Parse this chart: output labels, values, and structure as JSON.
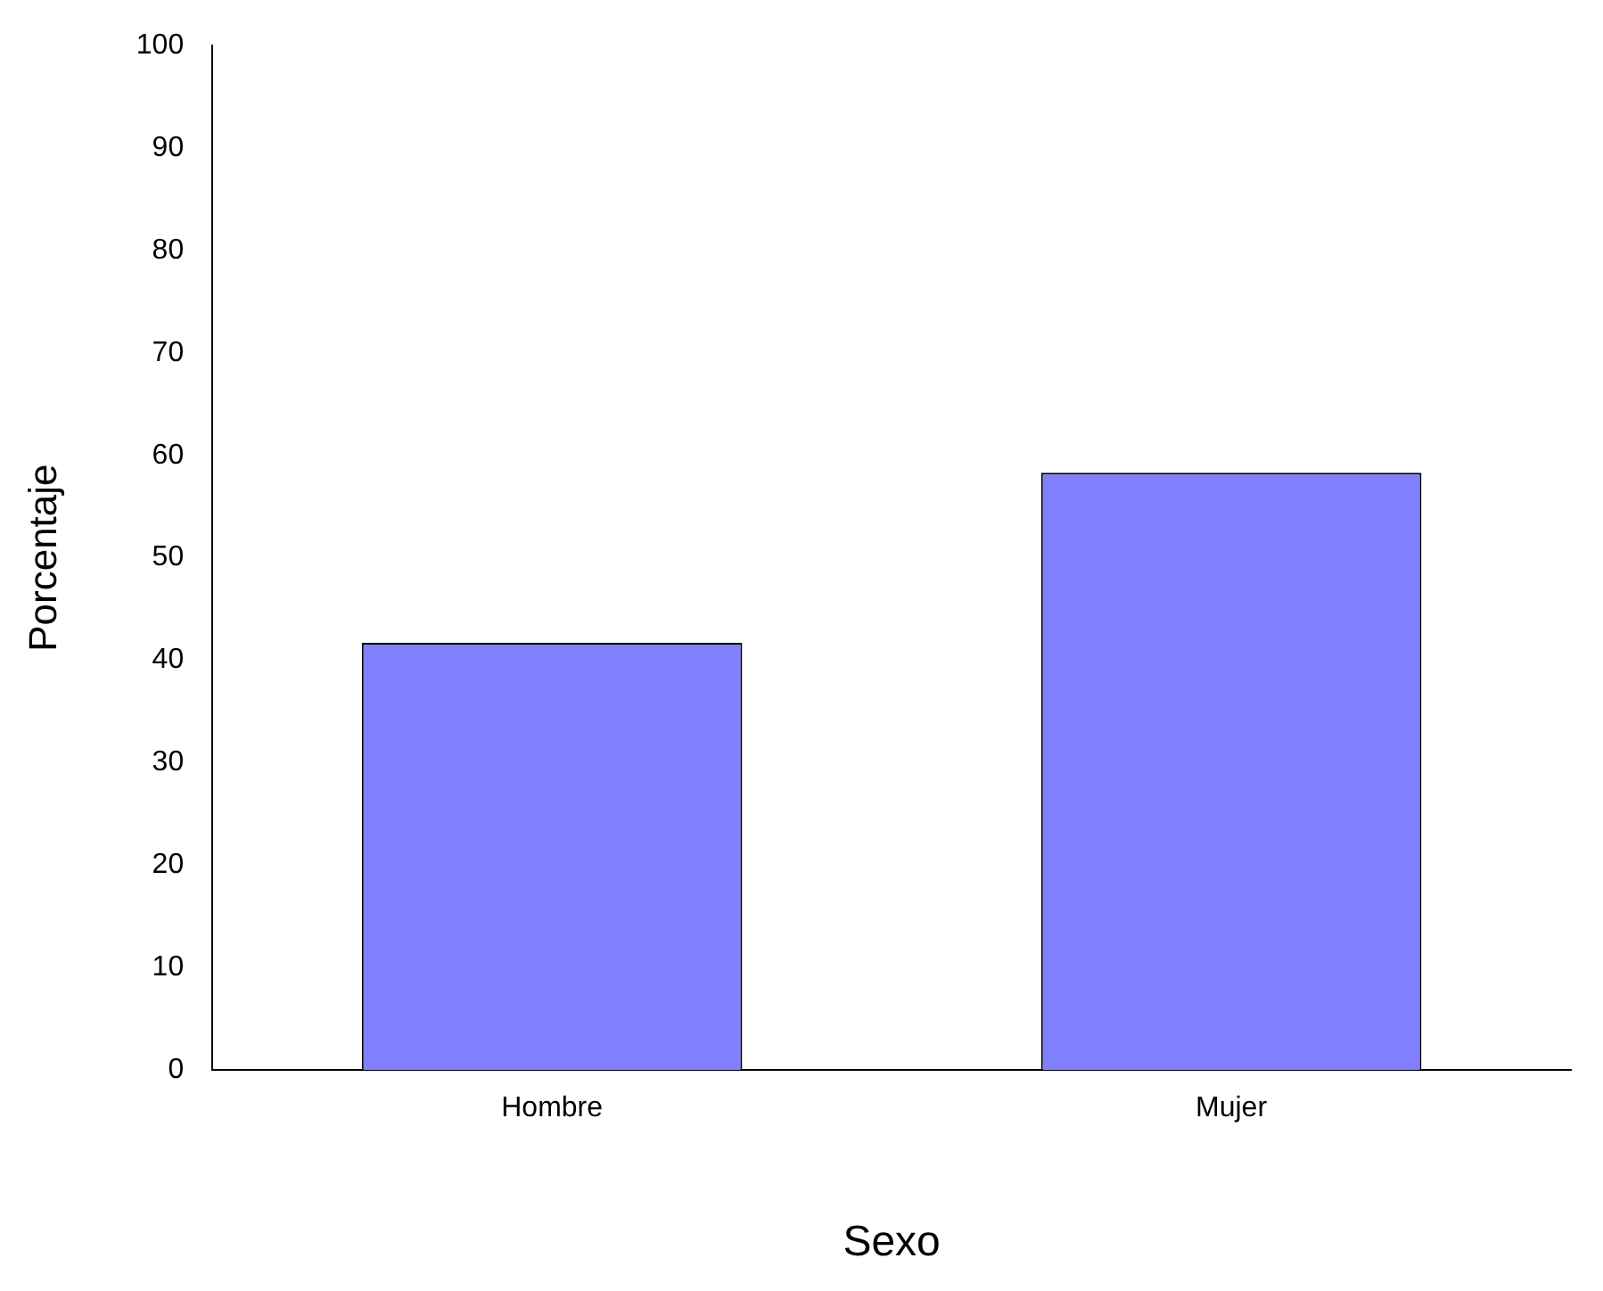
{
  "chart_data": {
    "type": "bar",
    "xlabel": "Sexo",
    "ylabel": "Porcentaje",
    "categories": [
      "Hombre",
      "Mujer"
    ],
    "values": [
      41.7,
      58.3
    ],
    "color": "#8080ff",
    "ylim": [
      0,
      100
    ],
    "yticks": [
      0,
      10,
      20,
      30,
      40,
      50,
      60,
      70,
      80,
      90,
      100
    ],
    "grid": false,
    "legend": false
  }
}
